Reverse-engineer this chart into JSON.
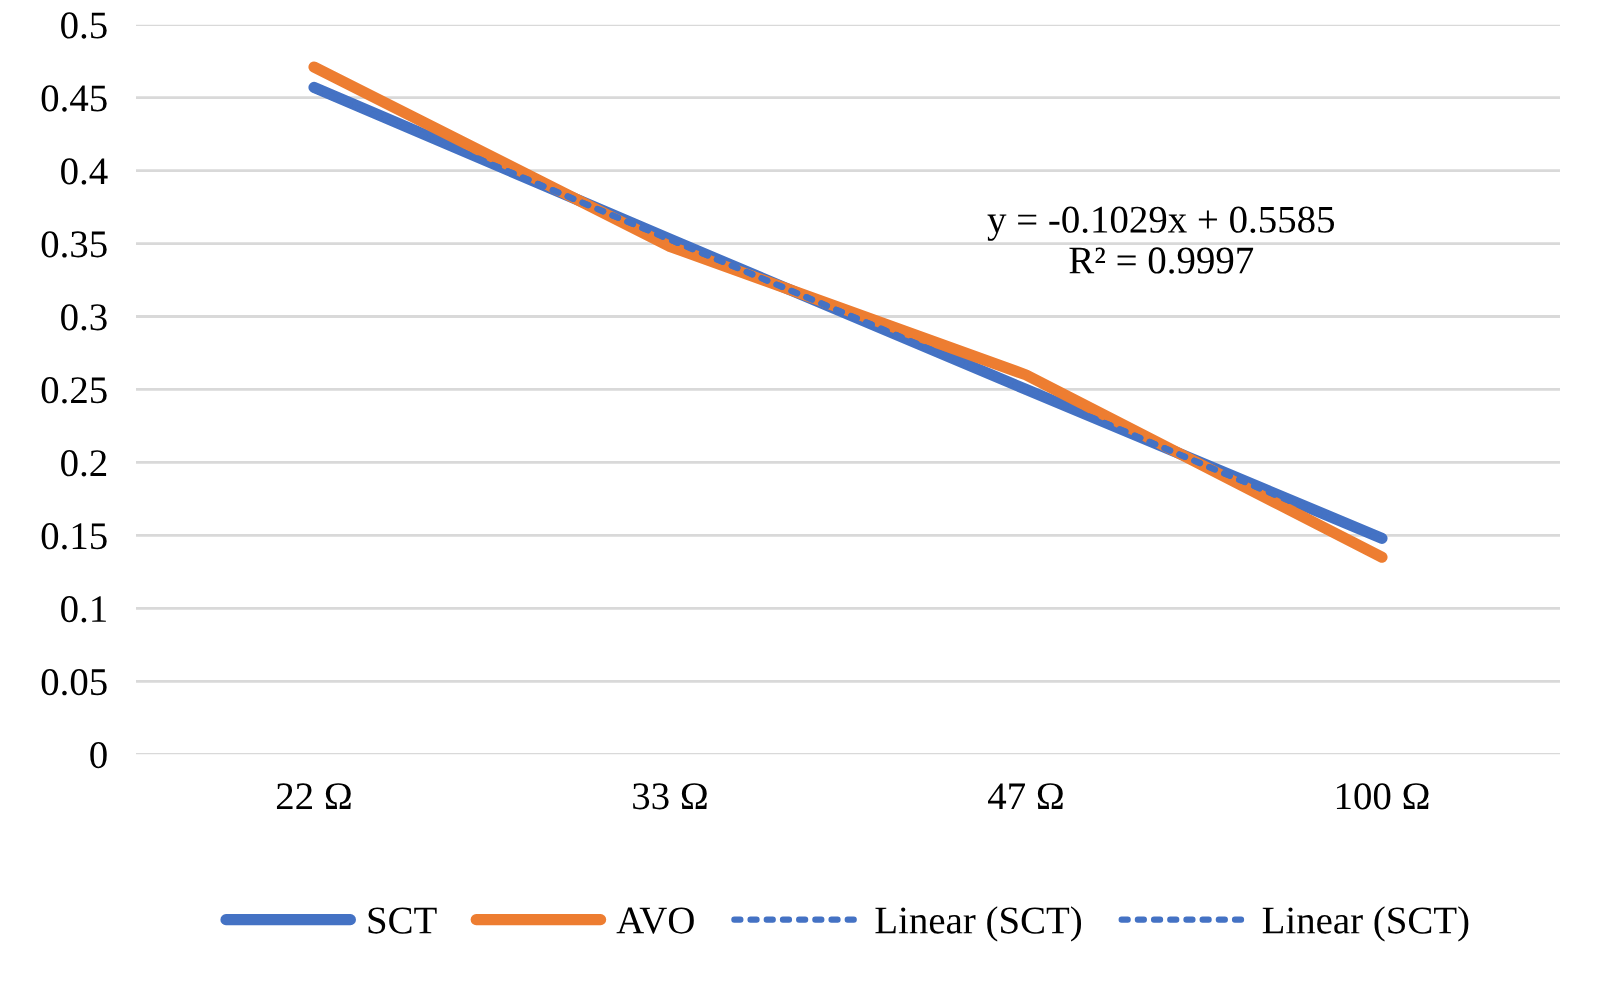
{
  "chart_data": {
    "type": "line",
    "categories": [
      "22 Ω",
      "33 Ω",
      "47 Ω",
      "100 Ω"
    ],
    "series": [
      {
        "name": "SCT",
        "color": "#4472c4",
        "values": [
          0.457,
          0.353,
          0.25,
          0.148
        ],
        "line_style": "solid"
      },
      {
        "name": "AVO",
        "color": "#ed7d31",
        "values": [
          0.471,
          0.348,
          0.26,
          0.135
        ],
        "line_style": "solid"
      },
      {
        "name": "Linear (SCT)",
        "color": "#4472c4",
        "values": [
          0.4556,
          0.3527,
          0.2498,
          0.1469
        ],
        "line_style": "dotted"
      },
      {
        "name": "Linear (SCT)",
        "color": "#4472c4",
        "values": [
          0.4556,
          0.3527,
          0.2498,
          0.1469
        ],
        "line_style": "dotted"
      }
    ],
    "ylim": [
      0,
      0.5
    ],
    "yticks": [
      0,
      0.05,
      0.1,
      0.15,
      0.2,
      0.25,
      0.3,
      0.35,
      0.4,
      0.45,
      0.5
    ],
    "grid": "y",
    "legend": "bottom",
    "marker": "none",
    "annotations": [
      "y = -0.1029x + 0.5585\nR² = 0.9997"
    ]
  }
}
